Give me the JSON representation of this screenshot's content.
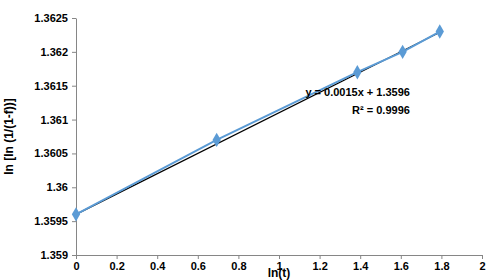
{
  "chart_data": {
    "type": "scatter",
    "x_label": "ln(t)",
    "y_label": "ln [ln (1/(1-f))]",
    "annotations": [
      "y = 0.0015x + 1.3596",
      "R² = 0.9996"
    ],
    "series": [
      {
        "type": "line",
        "color": "#5b9bd5",
        "marker": "diamond",
        "line_style": "solid",
        "x": [
          0,
          0.693,
          1.386,
          1.609,
          1.792
        ],
        "values": [
          1.3596,
          1.3607,
          1.3617,
          1.362,
          1.3623
        ]
      },
      {
        "type": "line",
        "color": "#000000",
        "line_style": "solid",
        "x": [
          0,
          1.8
        ],
        "values": [
          1.3596,
          1.3623
        ]
      }
    ],
    "xlim": [
      0,
      2
    ],
    "xticks": [
      0,
      0.2,
      0.4,
      0.6,
      0.8,
      1,
      1.2,
      1.4,
      1.6,
      1.8,
      2
    ],
    "ylim": [
      1.359,
      1.3625
    ],
    "yticks": [
      1.359,
      1.3595,
      1.36,
      1.3605,
      1.361,
      1.3615,
      1.362,
      1.3625
    ],
    "grid": false
  }
}
